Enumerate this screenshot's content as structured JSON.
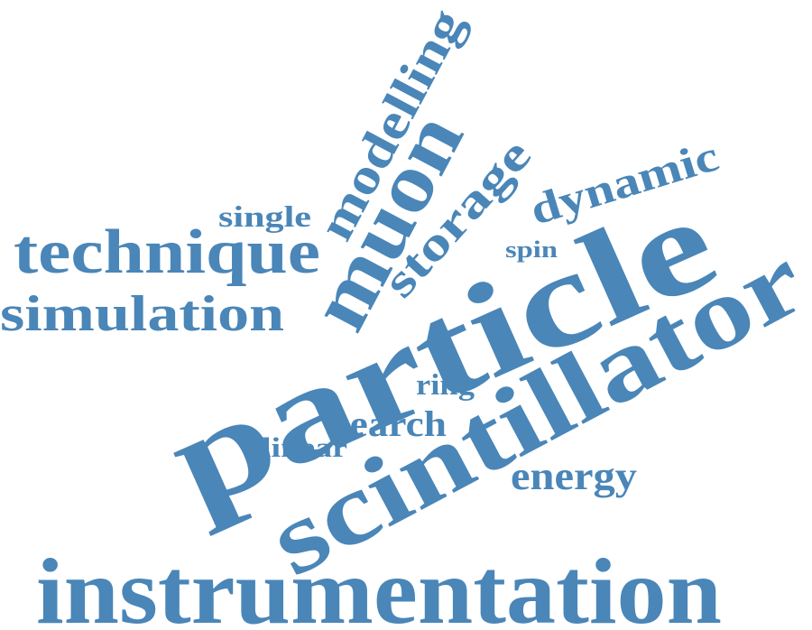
{
  "word_cloud": {
    "color": "#4a86b8",
    "background": "#ffffff",
    "words": [
      {
        "id": "modelling",
        "text": "modelling"
      },
      {
        "id": "muon",
        "text": "muon"
      },
      {
        "id": "storage",
        "text": "storage"
      },
      {
        "id": "dynamic",
        "text": "dynamic"
      },
      {
        "id": "single",
        "text": "single"
      },
      {
        "id": "technique",
        "text": "technique"
      },
      {
        "id": "spin",
        "text": "spin"
      },
      {
        "id": "simulation",
        "text": "simulation"
      },
      {
        "id": "particle",
        "text": "particle"
      },
      {
        "id": "scintillator",
        "text": "scintillator"
      },
      {
        "id": "ring",
        "text": "ring"
      },
      {
        "id": "search",
        "text": "search"
      },
      {
        "id": "linear",
        "text": "linear"
      },
      {
        "id": "energy",
        "text": "energy"
      },
      {
        "id": "instrumentation",
        "text": "instrumentation"
      }
    ]
  }
}
